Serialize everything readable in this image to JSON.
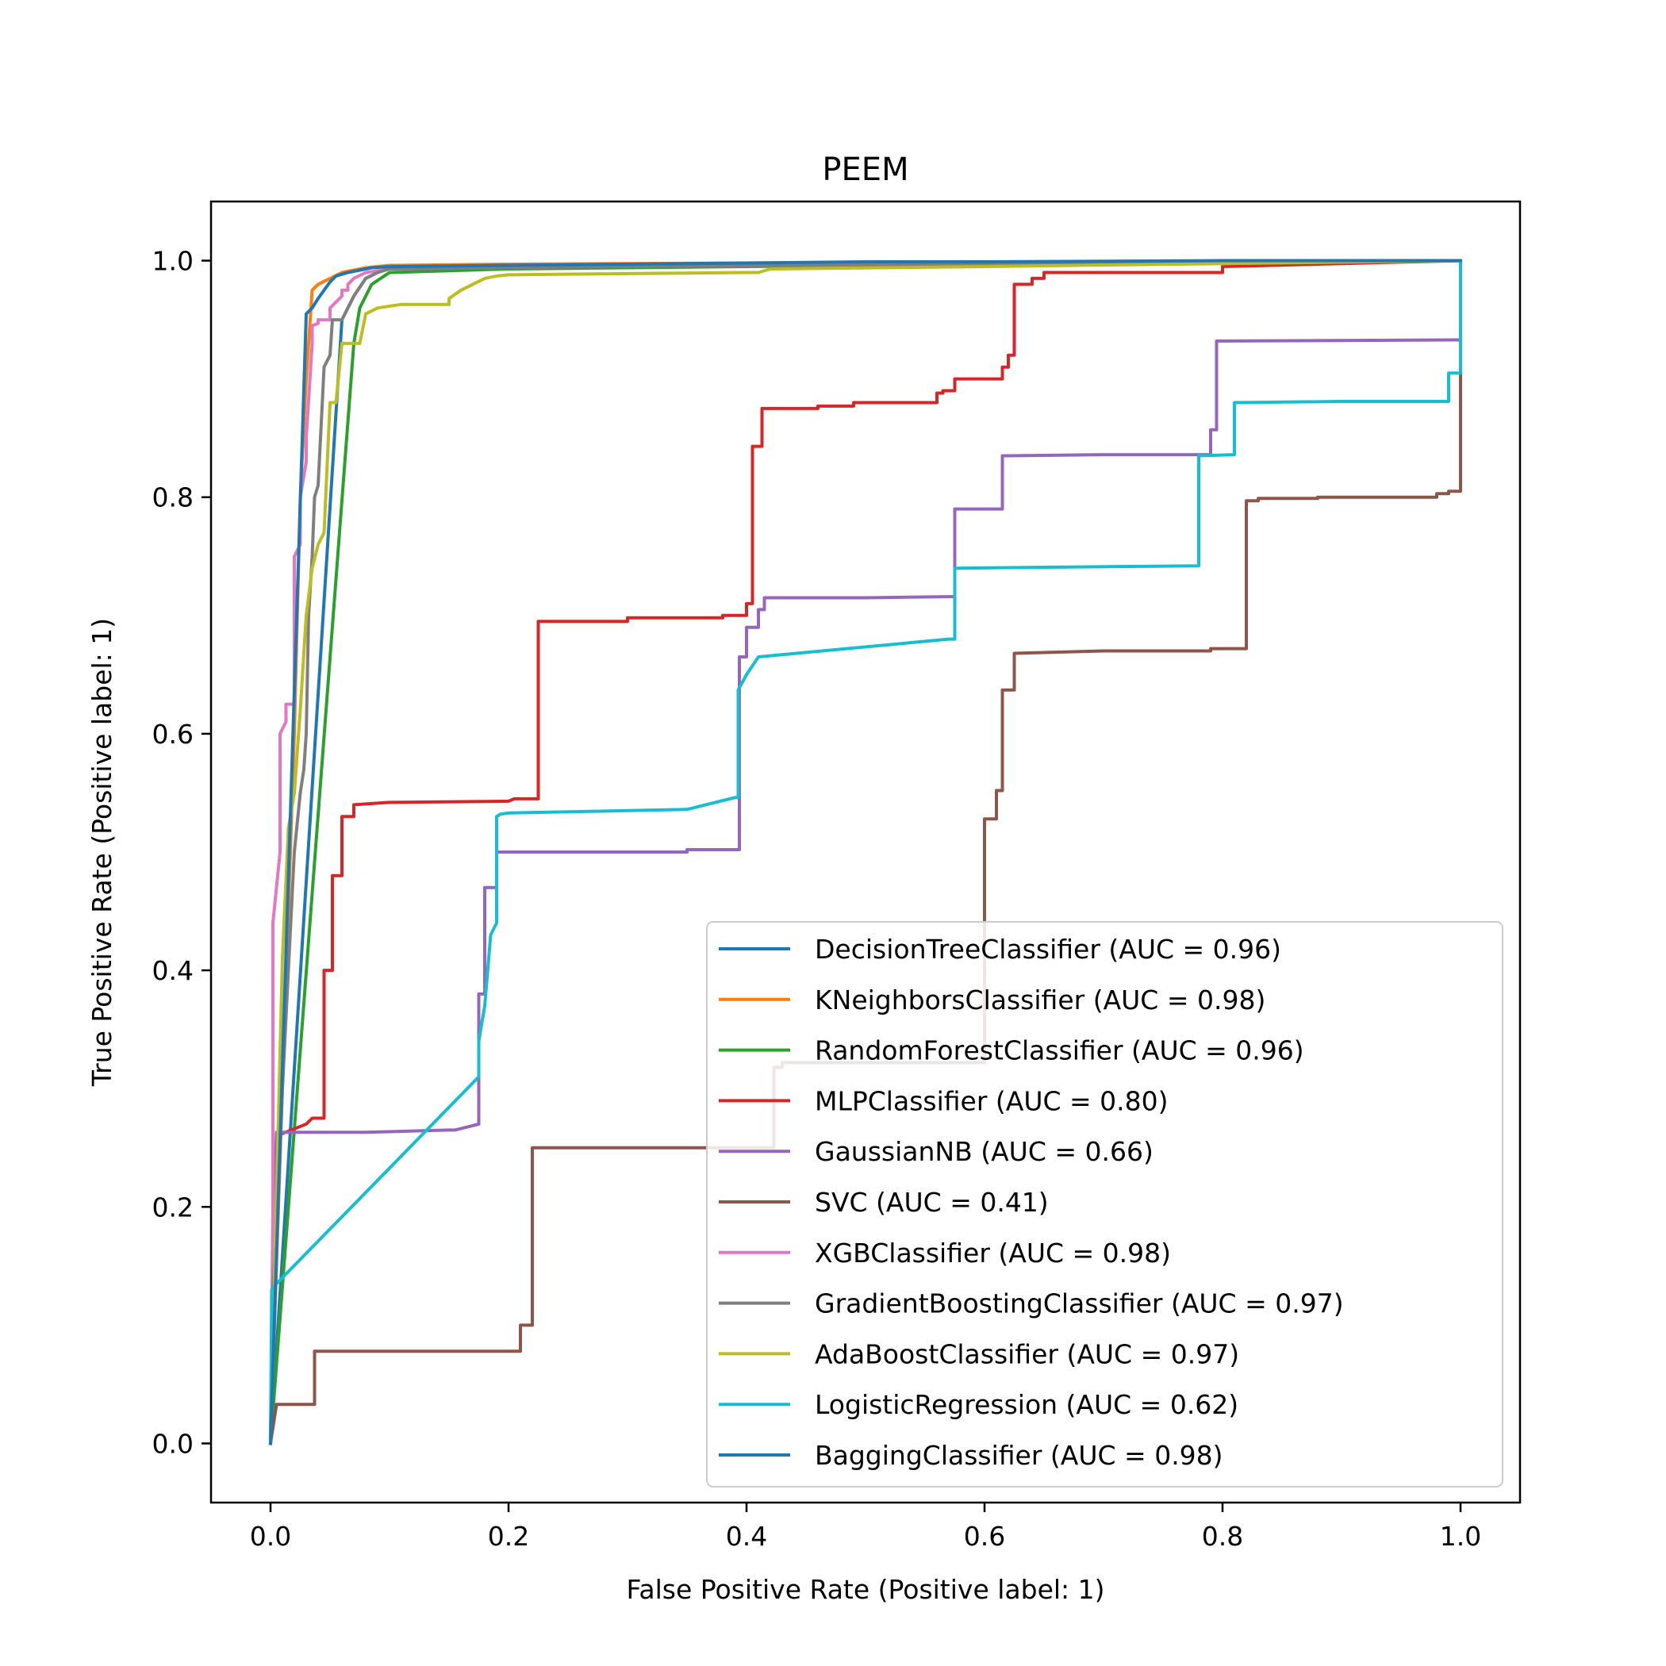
{
  "chart_data": {
    "type": "line",
    "title": "PEEM",
    "xlabel": "False Positive Rate (Positive label: 1)",
    "ylabel": "True Positive Rate (Positive label: 1)",
    "xlim": [
      -0.05,
      1.05
    ],
    "ylim": [
      -0.05,
      1.05
    ],
    "xticks": [
      "0.0",
      "0.2",
      "0.4",
      "0.6",
      "0.8",
      "1.0"
    ],
    "yticks": [
      "0.0",
      "0.2",
      "0.4",
      "0.6",
      "0.8",
      "1.0"
    ],
    "grid": false,
    "legend_position": "lower-right",
    "series": [
      {
        "name": "DecisionTreeClassifier (AUC = 0.96)",
        "color": "#1f77b4",
        "x": [
          0,
          0.06,
          0.07,
          0.08,
          0.1,
          0.3,
          0.5,
          0.8,
          1.0
        ],
        "y": [
          0,
          0.95,
          0.97,
          0.985,
          0.995,
          0.997,
          0.998,
          0.999,
          1.0
        ]
      },
      {
        "name": "KNeighborsClassifier (AUC = 0.98)",
        "color": "#ff7f0e",
        "x": [
          0,
          0.01,
          0.02,
          0.025,
          0.03,
          0.035,
          0.04,
          0.05,
          0.06,
          0.07,
          0.08,
          0.1,
          0.2,
          0.4,
          0.6,
          0.8,
          1.0
        ],
        "y": [
          0,
          0.3,
          0.6,
          0.8,
          0.9,
          0.975,
          0.98,
          0.985,
          0.99,
          0.992,
          0.994,
          0.996,
          0.997,
          0.998,
          0.999,
          0.999,
          1.0
        ]
      },
      {
        "name": "RandomForestClassifier (AUC = 0.96)",
        "color": "#2ca02c",
        "x": [
          0,
          0.07,
          0.075,
          0.085,
          0.1,
          0.2,
          0.4,
          0.6,
          0.8,
          1.0
        ],
        "y": [
          0,
          0.93,
          0.96,
          0.98,
          0.99,
          0.993,
          0.995,
          0.997,
          0.999,
          1.0
        ]
      },
      {
        "name": "MLPClassifier (AUC = 0.80)",
        "color": "#d62728",
        "x": [
          0,
          0.005,
          0.03,
          0.035,
          0.045,
          0.045,
          0.052,
          0.052,
          0.06,
          0.06,
          0.07,
          0.07,
          0.1,
          0.2,
          0.205,
          0.225,
          0.225,
          0.3,
          0.3,
          0.38,
          0.38,
          0.4,
          0.4,
          0.405,
          0.405,
          0.413,
          0.413,
          0.46,
          0.46,
          0.49,
          0.49,
          0.56,
          0.56,
          0.56,
          0.565,
          0.565,
          0.575,
          0.575,
          0.6,
          0.6,
          0.615,
          0.615,
          0.62,
          0.62,
          0.625,
          0.625,
          0.64,
          0.64,
          0.65,
          0.65,
          0.8,
          0.8,
          1.0
        ],
        "y": [
          0,
          0.26,
          0.27,
          0.275,
          0.275,
          0.4,
          0.4,
          0.48,
          0.48,
          0.53,
          0.53,
          0.54,
          0.542,
          0.543,
          0.545,
          0.545,
          0.695,
          0.695,
          0.698,
          0.698,
          0.7,
          0.7,
          0.71,
          0.71,
          0.843,
          0.843,
          0.875,
          0.875,
          0.877,
          0.877,
          0.88,
          0.88,
          0.884,
          0.888,
          0.888,
          0.89,
          0.89,
          0.9,
          0.9,
          0.9,
          0.9,
          0.91,
          0.91,
          0.92,
          0.92,
          0.98,
          0.98,
          0.985,
          0.985,
          0.99,
          0.99,
          0.995,
          1.0
        ]
      },
      {
        "name": "GaussianNB (AUC = 0.66)",
        "color": "#9467bd",
        "x": [
          0,
          0.005,
          0.08,
          0.15,
          0.155,
          0.175,
          0.175,
          0.18,
          0.18,
          0.19,
          0.19,
          0.3,
          0.35,
          0.35,
          0.394,
          0.394,
          0.4,
          0.4,
          0.41,
          0.41,
          0.415,
          0.415,
          0.5,
          0.575,
          0.575,
          0.615,
          0.615,
          0.62,
          0.7,
          0.78,
          0.79,
          0.79,
          0.795,
          0.795,
          0.8,
          1.0
        ],
        "y": [
          0,
          0.263,
          0.263,
          0.265,
          0.265,
          0.27,
          0.38,
          0.38,
          0.47,
          0.47,
          0.5,
          0.5,
          0.5,
          0.502,
          0.502,
          0.665,
          0.665,
          0.69,
          0.69,
          0.705,
          0.705,
          0.715,
          0.715,
          0.716,
          0.79,
          0.79,
          0.835,
          0.835,
          0.836,
          0.836,
          0.836,
          0.857,
          0.857,
          0.932,
          0.932,
          0.933
        ]
      },
      {
        "name": "SVC (AUC = 0.41)",
        "color": "#8c564b",
        "x": [
          0,
          0.005,
          0.037,
          0.037,
          0.1,
          0.21,
          0.21,
          0.22,
          0.22,
          0.3,
          0.4,
          0.423,
          0.423,
          0.43,
          0.43,
          0.45,
          0.59,
          0.6,
          0.6,
          0.61,
          0.61,
          0.615,
          0.615,
          0.62,
          0.62,
          0.625,
          0.625,
          0.7,
          0.78,
          0.79,
          0.79,
          0.8,
          0.8,
          0.82,
          0.82,
          0.83,
          0.83,
          0.88,
          0.88,
          0.9,
          0.98,
          0.98,
          0.99,
          0.99,
          1.0,
          1.0
        ],
        "y": [
          0,
          0.033,
          0.033,
          0.078,
          0.078,
          0.078,
          0.1,
          0.1,
          0.25,
          0.25,
          0.25,
          0.25,
          0.318,
          0.318,
          0.322,
          0.322,
          0.322,
          0.322,
          0.528,
          0.528,
          0.552,
          0.552,
          0.637,
          0.637,
          0.637,
          0.637,
          0.668,
          0.67,
          0.67,
          0.67,
          0.672,
          0.672,
          0.672,
          0.672,
          0.797,
          0.797,
          0.799,
          0.799,
          0.8,
          0.8,
          0.8,
          0.803,
          0.803,
          0.805,
          0.805,
          0.99
        ]
      },
      {
        "name": "XGBClassifier (AUC = 0.98)",
        "color": "#e377c2",
        "x": [
          0,
          0.002,
          0.002,
          0.008,
          0.008,
          0.013,
          0.013,
          0.02,
          0.02,
          0.025,
          0.025,
          0.03,
          0.03,
          0.035,
          0.035,
          0.04,
          0.04,
          0.05,
          0.05,
          0.06,
          0.06,
          0.065,
          0.065,
          0.07,
          0.08,
          0.1,
          0.3,
          0.6,
          1.0
        ],
        "y": [
          0,
          0.2,
          0.44,
          0.5,
          0.6,
          0.61,
          0.625,
          0.625,
          0.75,
          0.76,
          0.8,
          0.83,
          0.85,
          0.93,
          0.945,
          0.947,
          0.95,
          0.95,
          0.96,
          0.97,
          0.975,
          0.975,
          0.98,
          0.985,
          0.99,
          0.993,
          0.996,
          0.998,
          1.0
        ]
      },
      {
        "name": "GradientBoostingClassifier (AUC = 0.97)",
        "color": "#7f7f7f",
        "x": [
          0,
          0.002,
          0.005,
          0.01,
          0.015,
          0.02,
          0.025,
          0.028,
          0.03,
          0.032,
          0.035,
          0.037,
          0.04,
          0.043,
          0.045,
          0.05,
          0.052,
          0.06,
          0.065,
          0.07,
          0.08,
          0.09,
          0.1,
          0.3,
          0.6,
          1.0
        ],
        "y": [
          0,
          0.13,
          0.18,
          0.3,
          0.4,
          0.5,
          0.55,
          0.57,
          0.6,
          0.7,
          0.75,
          0.8,
          0.81,
          0.87,
          0.91,
          0.92,
          0.95,
          0.95,
          0.96,
          0.97,
          0.985,
          0.99,
          0.993,
          0.995,
          0.997,
          1.0
        ]
      },
      {
        "name": "AdaBoostClassifier (AUC = 0.97)",
        "color": "#bcbd22",
        "x": [
          0,
          0.005,
          0.01,
          0.015,
          0.02,
          0.025,
          0.03,
          0.035,
          0.04,
          0.045,
          0.05,
          0.055,
          0.06,
          0.065,
          0.07,
          0.075,
          0.08,
          0.09,
          0.11,
          0.15,
          0.15,
          0.16,
          0.17,
          0.18,
          0.19,
          0.2,
          0.3,
          0.4,
          0.41,
          0.42,
          0.6,
          1.0
        ],
        "y": [
          0,
          0.21,
          0.41,
          0.52,
          0.55,
          0.62,
          0.7,
          0.74,
          0.76,
          0.77,
          0.88,
          0.88,
          0.93,
          0.93,
          0.93,
          0.93,
          0.955,
          0.96,
          0.963,
          0.963,
          0.968,
          0.975,
          0.98,
          0.985,
          0.987,
          0.988,
          0.989,
          0.99,
          0.99,
          0.993,
          0.995,
          1.0
        ]
      },
      {
        "name": "LogisticRegression (AUC = 0.62)",
        "color": "#17becf",
        "x": [
          0,
          0.001,
          0.005,
          0.175,
          0.175,
          0.18,
          0.185,
          0.19,
          0.19,
          0.193,
          0.2,
          0.35,
          0.39,
          0.393,
          0.393,
          0.4,
          0.41,
          0.57,
          0.575,
          0.575,
          0.78,
          0.78,
          0.81,
          0.81,
          0.9,
          0.99,
          0.99,
          1.0,
          1.0
        ],
        "y": [
          0,
          0.13,
          0.135,
          0.31,
          0.34,
          0.37,
          0.43,
          0.44,
          0.53,
          0.532,
          0.533,
          0.536,
          0.546,
          0.546,
          0.637,
          0.65,
          0.665,
          0.68,
          0.68,
          0.74,
          0.742,
          0.835,
          0.836,
          0.88,
          0.881,
          0.881,
          0.905,
          0.905,
          1.0
        ]
      },
      {
        "name": "BaggingClassifier (AUC = 0.98)",
        "color": "#1f77b4",
        "x": [
          0,
          0.03,
          0.035,
          0.04,
          0.045,
          0.05,
          0.055,
          0.065,
          0.075,
          0.085,
          0.1,
          0.2,
          0.3,
          0.4,
          0.5,
          0.6,
          0.8,
          1.0
        ],
        "y": [
          0,
          0.955,
          0.96,
          0.968,
          0.975,
          0.982,
          0.987,
          0.99,
          0.992,
          0.994,
          0.995,
          0.996,
          0.997,
          0.998,
          0.999,
          0.999,
          1.0,
          1.0
        ]
      }
    ]
  }
}
